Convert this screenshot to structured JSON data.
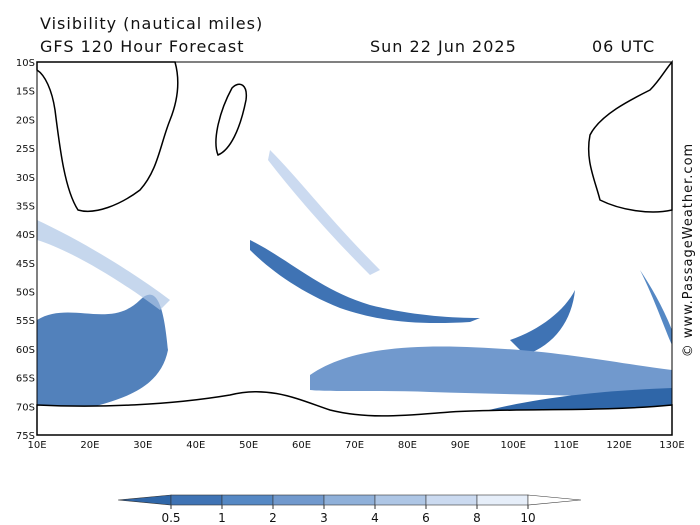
{
  "header": {
    "title": "Visibility (nautical miles)",
    "subtitle": "GFS 120 Hour Forecast",
    "date": "Sun 22 Jun 2025",
    "time": "06 UTC"
  },
  "map": {
    "lat_labels": [
      "10S",
      "15S",
      "20S",
      "25S",
      "30S",
      "35S",
      "40S",
      "45S",
      "50S",
      "55S",
      "60S",
      "65S",
      "70S",
      "75S"
    ],
    "lon_labels": [
      "10E",
      "20E",
      "30E",
      "40E",
      "50E",
      "60E",
      "70E",
      "80E",
      "90E",
      "100E",
      "110E",
      "120E",
      "130E"
    ]
  },
  "legend": {
    "ticks": [
      0.5,
      1,
      2,
      3,
      4,
      6,
      8,
      10
    ],
    "colors": [
      "#2f66a8",
      "#3f73b4",
      "#5588c4",
      "#7199cd",
      "#8fb0d9",
      "#aec6e5",
      "#cbdaf0",
      "#e6eef9",
      "#ffffff"
    ]
  },
  "watermark": "© www.PassageWeather.com"
}
